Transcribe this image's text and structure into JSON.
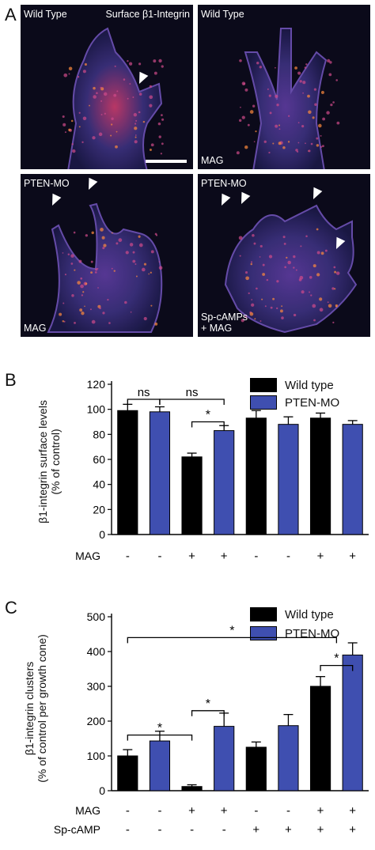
{
  "panel_a": {
    "letter": "A",
    "tiles": [
      {
        "top_label": "Wild Type",
        "top_right_label": "Surface β1-Integrin",
        "bottom_label": "",
        "arrows": 1,
        "scalebar": true
      },
      {
        "top_label": "Wild Type",
        "top_right_label": "",
        "bottom_label": "MAG",
        "arrows": 0,
        "scalebar": false
      },
      {
        "top_label": "PTEN-MO",
        "top_right_label": "",
        "bottom_label": "MAG",
        "arrows": 2,
        "scalebar": false
      },
      {
        "top_label": "PTEN-MO",
        "top_right_label": "",
        "bottom_label": "Sp-cAMPs\n+ MAG",
        "arrows": 4,
        "scalebar": false
      }
    ]
  },
  "legend": {
    "wild_type": "Wild type",
    "pten_mo": "PTEN-MO",
    "colors": {
      "wild_type": "#000000",
      "pten_mo": "#3f4fb0"
    }
  },
  "condition_rows": {
    "mag_label": "MAG",
    "spcamp_label": "Sp-cAMP",
    "mag": [
      "-",
      "-",
      "+",
      "+",
      "-",
      "-",
      "+",
      "+"
    ],
    "spcamp": [
      "-",
      "-",
      "-",
      "-",
      "+",
      "+",
      "+",
      "+"
    ]
  },
  "chart_data": [
    {
      "panel": "B",
      "type": "bar",
      "ylabel": "β1-integrin surface levels\n(% of control)",
      "ylim": [
        0,
        120
      ],
      "yticks": [
        0,
        20,
        40,
        60,
        80,
        100,
        120
      ],
      "series": [
        {
          "name": "Wild type",
          "positions": [
            0,
            2,
            4,
            6
          ],
          "values": [
            99,
            62,
            93,
            93
          ],
          "errors": [
            5,
            3,
            6,
            4
          ]
        },
        {
          "name": "PTEN-MO",
          "positions": [
            1,
            3,
            5,
            7
          ],
          "values": [
            98,
            83,
            88,
            88
          ],
          "errors": [
            4,
            4,
            6,
            3
          ]
        }
      ],
      "annotations": [
        {
          "text": "ns",
          "from": 0,
          "to": 1,
          "y": 108
        },
        {
          "text": "ns",
          "from": 1,
          "to": 3,
          "y": 108
        },
        {
          "text": "*",
          "from": 2,
          "to": 3,
          "y": 90
        }
      ]
    },
    {
      "panel": "C",
      "type": "bar",
      "ylabel": "β1-integrin clusters\n(% of control per growth cone)",
      "ylim": [
        0,
        500
      ],
      "yticks": [
        0,
        100,
        200,
        300,
        400,
        500
      ],
      "series": [
        {
          "name": "Wild type",
          "positions": [
            0,
            2,
            4,
            6
          ],
          "values": [
            100,
            12,
            125,
            300
          ],
          "errors": [
            18,
            5,
            15,
            28
          ]
        },
        {
          "name": "PTEN-MO",
          "positions": [
            1,
            3,
            5,
            7
          ],
          "values": [
            143,
            185,
            187,
            390
          ],
          "errors": [
            28,
            38,
            32,
            35
          ]
        }
      ],
      "annotations": [
        {
          "text": "*",
          "from": 0,
          "to": 2,
          "y": 160
        },
        {
          "text": "*",
          "from": 2,
          "to": 3,
          "y": 230
        },
        {
          "text": "*",
          "from": 6,
          "to": 7,
          "y": 360
        },
        {
          "text": "*",
          "from": 0,
          "to": 6.5,
          "y": 440
        }
      ]
    }
  ]
}
